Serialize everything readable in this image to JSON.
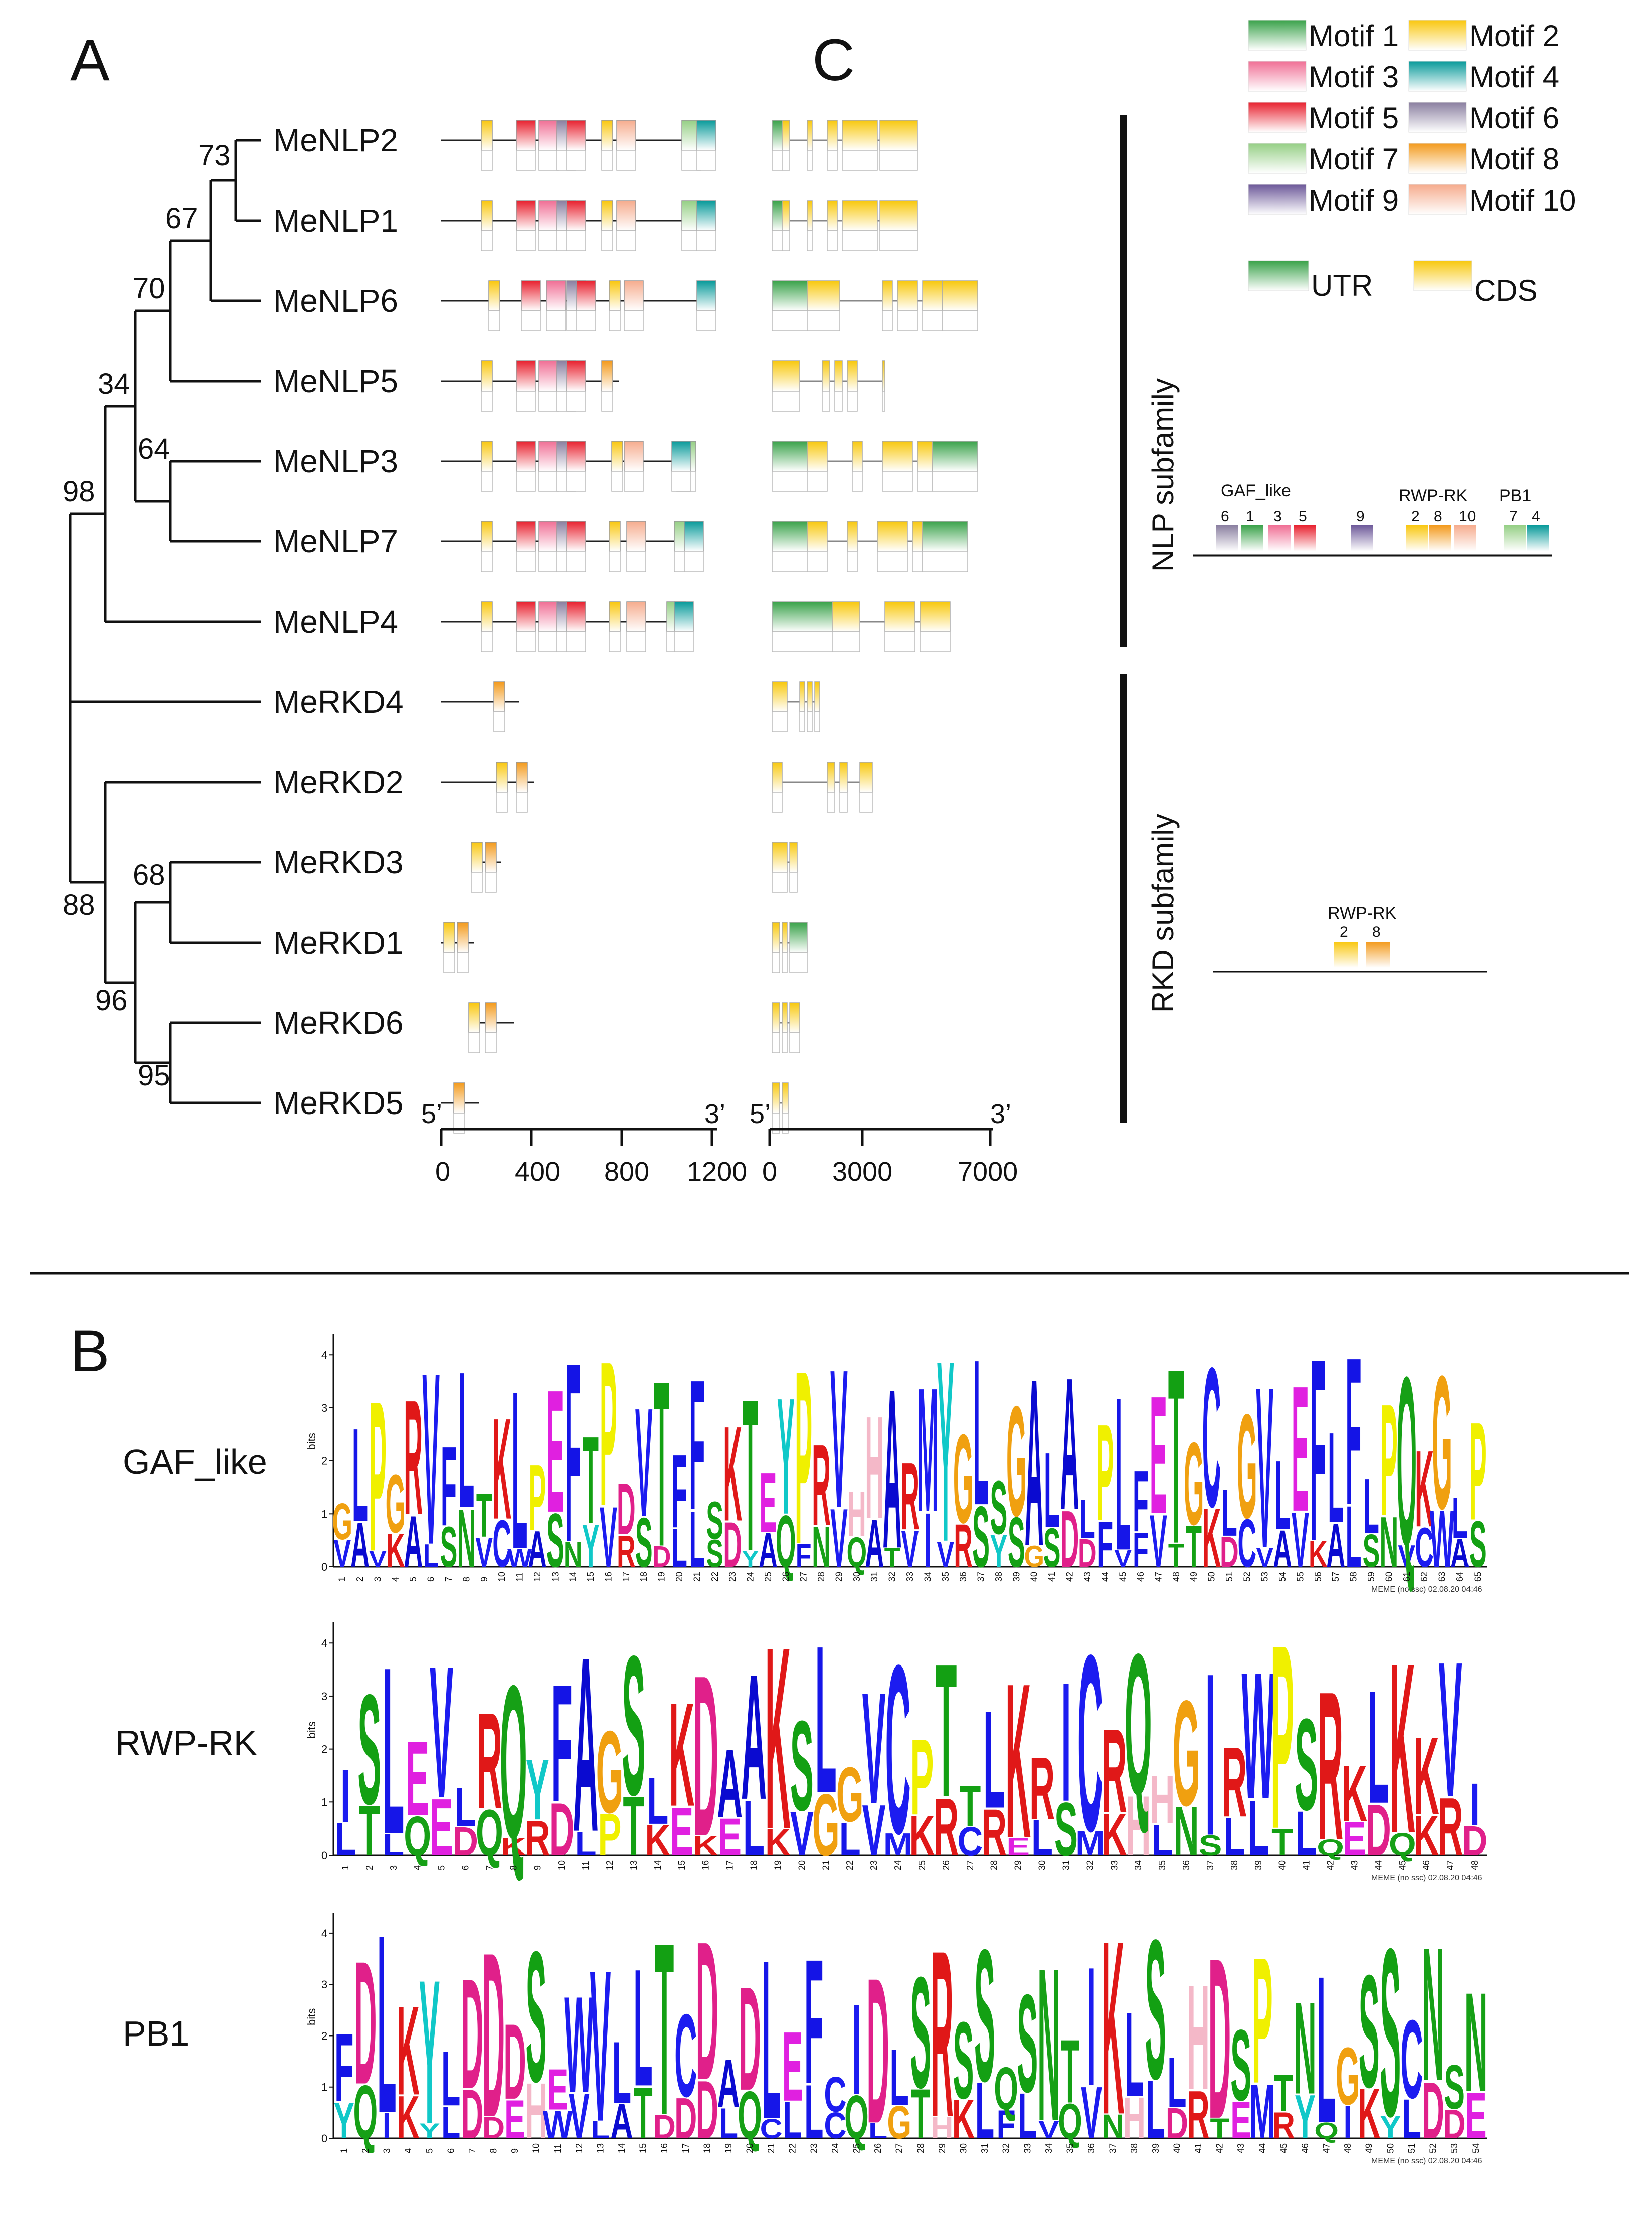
{
  "panels": {
    "a": "A",
    "b": "B",
    "c": "C"
  },
  "colors": {
    "motif": [
      "#3aa24a",
      "#f06f95",
      "#e8212f",
      "#089a9a",
      "#8a7fa0",
      "#f9c70f",
      "#6e5a9a",
      "#f39a1c",
      "#95cf85",
      "#f6ac8e"
    ],
    "utr": "#43a548",
    "cds": "#f8c80e"
  },
  "legend": {
    "motifs": [
      "Motif 1",
      "Motif 2",
      "Motif 3",
      "Motif 4",
      "Motif 5",
      "Motif 6",
      "Motif 7",
      "Motif 8",
      "Motif 9",
      "Motif 10"
    ],
    "utr": "UTR",
    "cds": "CDS"
  },
  "tree": {
    "taxa": [
      "MeNLP2",
      "MeNLP1",
      "MeNLP6",
      "MeNLP5",
      "MeNLP3",
      "MeNLP7",
      "MeNLP4",
      "MeRKD4",
      "MeRKD2",
      "MeRKD3",
      "MeRKD1",
      "MeRKD6",
      "MeRKD5"
    ],
    "bootstrap": [
      "73",
      "67",
      "70",
      "34",
      "64",
      "98",
      "88",
      "68",
      "96",
      "95"
    ]
  },
  "motif_axis": {
    "start": "5’",
    "end": "3’",
    "ticks": [
      "0",
      "400",
      "800",
      "1200"
    ]
  },
  "gene_axis": {
    "start": "5’",
    "end": "3’",
    "ticks": [
      "0",
      "3000",
      "7000"
    ]
  },
  "subfamilies": {
    "nlp": {
      "label": "NLP subfamily",
      "domains": [
        "GAF_like",
        "RWP-RK",
        "PB1"
      ],
      "motif_order": [
        "6",
        "1",
        "3",
        "5",
        "9",
        "2",
        "8",
        "10",
        "7",
        "4"
      ]
    },
    "rkd": {
      "label": "RKD subfamily",
      "domains": [
        "RWP-RK"
      ],
      "motif_order": [
        "2",
        "8"
      ]
    }
  },
  "logos": [
    {
      "name": "GAF_like",
      "ylabel": "bits",
      "yticks": [
        "0",
        "1",
        "2",
        "3",
        "4"
      ],
      "credit": "MEME (no ssc) 02.08.20 04:46",
      "top": "GLPGRVFLTKLPEFTPDVTFFSKTEYPRVHHARMYGLSGALALPLFETGCLGVLEFLFLPQK",
      "mid": "VAVKALSNVCWASNYVRSDLLSDYAQFNVQATVIVRSYSGSDDFVFVTTKDC",
      "positions": 65
    },
    {
      "name": "RWP-RK",
      "ylabel": "bits",
      "yticks": [
        "0",
        "1",
        "2",
        "3",
        "4"
      ],
      "credit": "MEME (no ssc) 02.08.20 04:46",
      "top": "ISLEVLRQYFAGSLKDAAKSLGVCPTTLKRICRQHGIRWPSRKLKKV",
      "mid": "LTLQEDQKRDLPTKEKELKVGLVMKRCRELSMKHLNSL",
      "positions": 48
    },
    {
      "name": "PB1",
      "ylabel": "bits",
      "yticks": [
        "0",
        "1",
        "2",
        "3",
        "4"
      ],
      "credit": "MEME (no ssc) 02.08.20 04:46",
      "top": "FDLKYLDDDSEWVLLTCDADLEFCIDLSRSSQSNTIKLSLHDSPTNLGSSCNSN",
      "mid": "YQIKYLDDEHWVLATDDDLQCLLCQLGTHKLFLVQVNHLDRTEMR",
      "positions": 54
    }
  ]
}
